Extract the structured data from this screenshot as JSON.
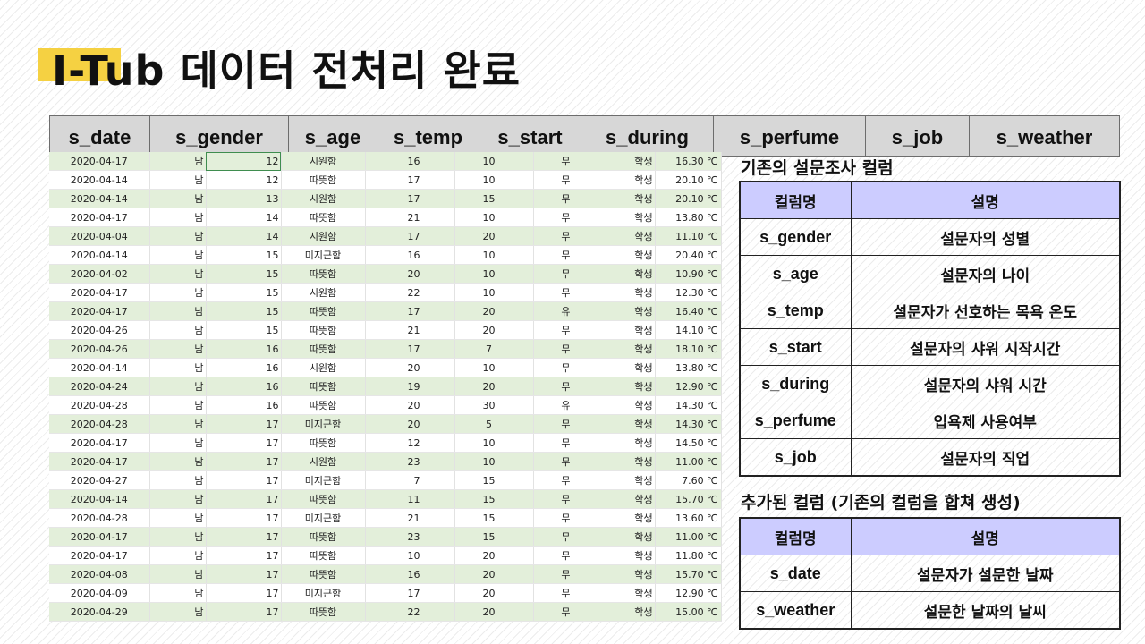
{
  "title": "I-Tub 데이터 전처리 완료",
  "colors": {
    "accent": "#f5d142",
    "header_bg": "#d7d7d7",
    "table_header_bg": "#ccccff",
    "row_stripe": "#e3efda"
  },
  "columns": [
    "s_date",
    "s_gender",
    "s_age",
    "s_temp",
    "s_start",
    "s_during",
    "s_perfume",
    "s_job",
    "s_weather"
  ],
  "rows": [
    [
      "2020-04-17",
      "남",
      "12",
      "시원함",
      "16",
      "10",
      "무",
      "학생",
      "16.30 ℃"
    ],
    [
      "2020-04-14",
      "남",
      "12",
      "따뜻함",
      "17",
      "10",
      "무",
      "학생",
      "20.10 ℃"
    ],
    [
      "2020-04-14",
      "남",
      "13",
      "시원함",
      "17",
      "15",
      "무",
      "학생",
      "20.10 ℃"
    ],
    [
      "2020-04-17",
      "남",
      "14",
      "따뜻함",
      "21",
      "10",
      "무",
      "학생",
      "13.80 ℃"
    ],
    [
      "2020-04-04",
      "남",
      "14",
      "시원함",
      "17",
      "20",
      "무",
      "학생",
      "11.10 ℃"
    ],
    [
      "2020-04-14",
      "남",
      "15",
      "미지근함",
      "16",
      "10",
      "무",
      "학생",
      "20.40 ℃"
    ],
    [
      "2020-04-02",
      "남",
      "15",
      "따뜻함",
      "20",
      "10",
      "무",
      "학생",
      "10.90 ℃"
    ],
    [
      "2020-04-17",
      "남",
      "15",
      "시원함",
      "22",
      "10",
      "무",
      "학생",
      "12.30 ℃"
    ],
    [
      "2020-04-17",
      "남",
      "15",
      "따뜻함",
      "17",
      "20",
      "유",
      "학생",
      "16.40 ℃"
    ],
    [
      "2020-04-26",
      "남",
      "15",
      "따뜻함",
      "21",
      "20",
      "무",
      "학생",
      "14.10 ℃"
    ],
    [
      "2020-04-26",
      "남",
      "16",
      "따뜻함",
      "17",
      "7",
      "무",
      "학생",
      "18.10 ℃"
    ],
    [
      "2020-04-14",
      "남",
      "16",
      "시원함",
      "20",
      "10",
      "무",
      "학생",
      "13.80 ℃"
    ],
    [
      "2020-04-24",
      "남",
      "16",
      "따뜻함",
      "19",
      "20",
      "무",
      "학생",
      "12.90 ℃"
    ],
    [
      "2020-04-28",
      "남",
      "16",
      "따뜻함",
      "20",
      "30",
      "유",
      "학생",
      "14.30 ℃"
    ],
    [
      "2020-04-28",
      "남",
      "17",
      "미지근함",
      "20",
      "5",
      "무",
      "학생",
      "14.30 ℃"
    ],
    [
      "2020-04-17",
      "남",
      "17",
      "따뜻함",
      "12",
      "10",
      "무",
      "학생",
      "14.50 ℃"
    ],
    [
      "2020-04-17",
      "남",
      "17",
      "시원함",
      "23",
      "10",
      "무",
      "학생",
      "11.00 ℃"
    ],
    [
      "2020-04-27",
      "남",
      "17",
      "미지근함",
      "7",
      "15",
      "무",
      "학생",
      "7.60 ℃"
    ],
    [
      "2020-04-14",
      "남",
      "17",
      "따뜻함",
      "11",
      "15",
      "무",
      "학생",
      "15.70 ℃"
    ],
    [
      "2020-04-28",
      "남",
      "17",
      "미지근함",
      "21",
      "15",
      "무",
      "학생",
      "13.60 ℃"
    ],
    [
      "2020-04-17",
      "남",
      "17",
      "따뜻함",
      "23",
      "15",
      "무",
      "학생",
      "11.00 ℃"
    ],
    [
      "2020-04-17",
      "남",
      "17",
      "따뜻함",
      "10",
      "20",
      "무",
      "학생",
      "11.80 ℃"
    ],
    [
      "2020-04-08",
      "남",
      "17",
      "따뜻함",
      "16",
      "20",
      "무",
      "학생",
      "15.70 ℃"
    ],
    [
      "2020-04-09",
      "남",
      "17",
      "미지근함",
      "17",
      "20",
      "무",
      "학생",
      "12.90 ℃"
    ],
    [
      "2020-04-29",
      "남",
      "17",
      "따뜻함",
      "22",
      "20",
      "무",
      "학생",
      "15.00 ℃"
    ]
  ],
  "existing": {
    "title": "기존의 설문조사 컬럼",
    "header": {
      "name": "컬럼명",
      "desc": "설명"
    },
    "items": [
      {
        "name": "s_gender",
        "desc": "설문자의 성별"
      },
      {
        "name": "s_age",
        "desc": "설문자의 나이"
      },
      {
        "name": "s_temp",
        "desc": "설문자가 선호하는 목욕 온도"
      },
      {
        "name": "s_start",
        "desc": "설문자의 샤워 시작시간"
      },
      {
        "name": "s_during",
        "desc": "설문자의 샤워 시간"
      },
      {
        "name": "s_perfume",
        "desc": "입욕제 사용여부"
      },
      {
        "name": "s_job",
        "desc": "설문자의 직업"
      }
    ]
  },
  "added": {
    "title": "추가된 컬럼 (기존의 컬럼을 합쳐 생성)",
    "header": {
      "name": "컬럼명",
      "desc": "설명"
    },
    "items": [
      {
        "name": "s_date",
        "desc": "설문자가 설문한 날짜"
      },
      {
        "name": "s_weather",
        "desc": "설문한 날짜의 날씨"
      }
    ]
  }
}
